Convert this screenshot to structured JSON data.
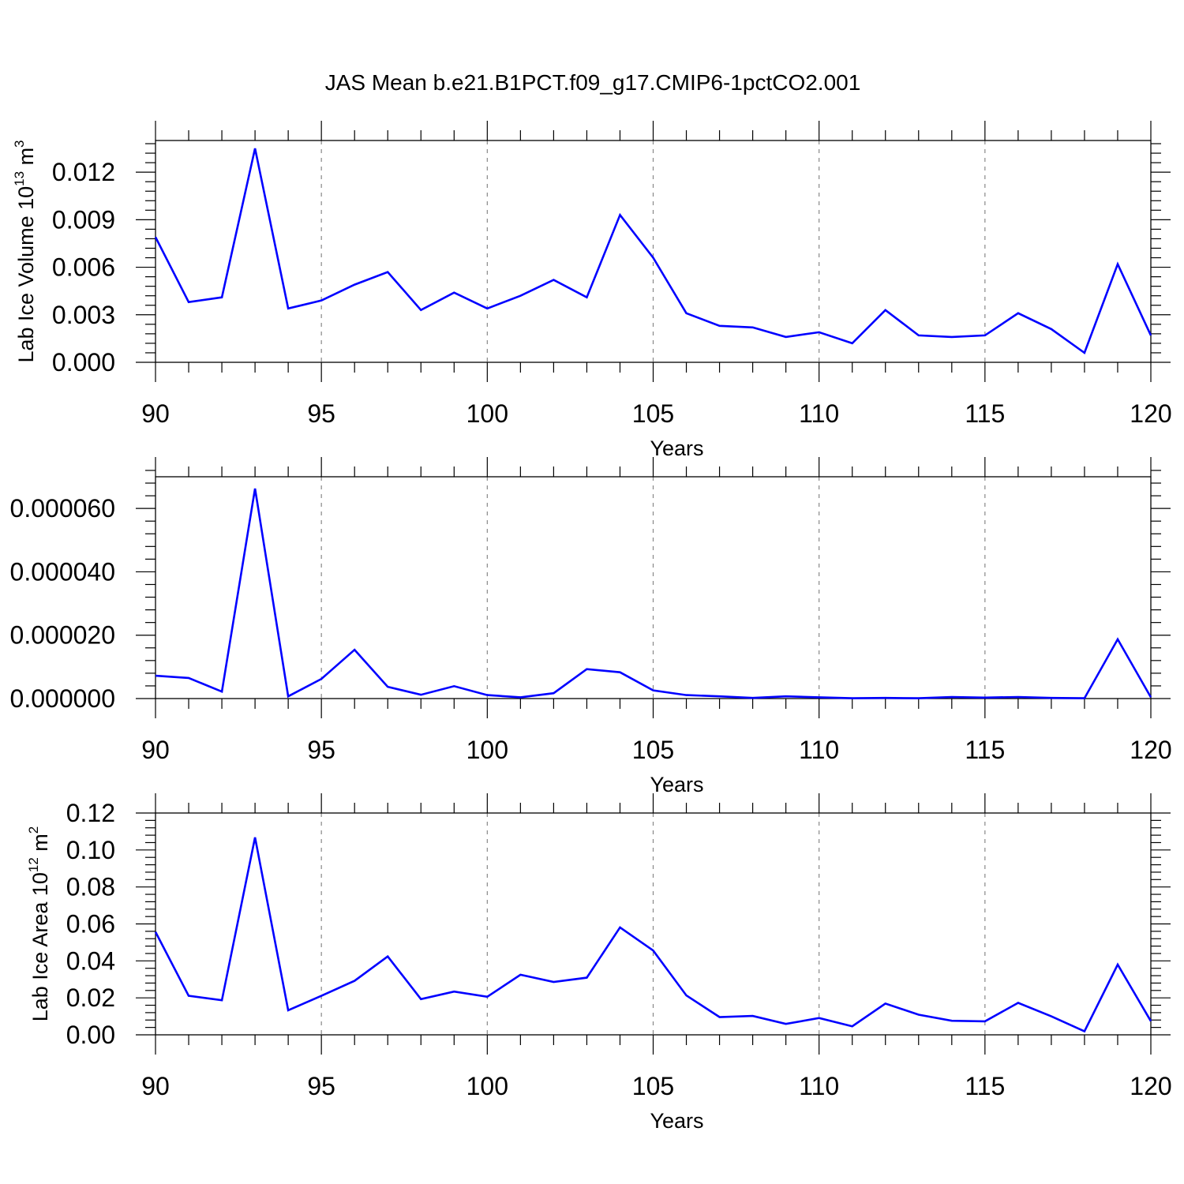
{
  "figure_title": "JAS Mean b.e21.B1PCT.f09_g17.CMIP6-1pctCO2.001",
  "colors": {
    "series": "#0000ff",
    "axis": "#000000",
    "grid": "#888888"
  },
  "chart_data": [
    {
      "type": "line",
      "ylabel": {
        "main": "Lab Ice Volume 10",
        "sup": "13",
        "unit": " m",
        "unit_sup": "3"
      },
      "xlabel": "Years",
      "xlim": [
        90,
        120
      ],
      "ylim": [
        0,
        0.014
      ],
      "x_major_ticks": [
        90,
        95,
        100,
        105,
        110,
        115,
        120
      ],
      "x_tick_labels": [
        "90",
        "95",
        "100",
        "105",
        "110",
        "115",
        "120"
      ],
      "y_major_ticks": [
        0,
        0.003,
        0.006,
        0.009,
        0.012
      ],
      "y_tick_labels": [
        "0.000",
        "0.003",
        "0.006",
        "0.009",
        "0.012"
      ],
      "y_minor_step": 0.0006,
      "x_minor_step": 1,
      "grid": "vertical-dashed",
      "x": [
        90,
        91,
        92,
        93,
        94,
        95,
        96,
        97,
        98,
        99,
        100,
        101,
        102,
        103,
        104,
        105,
        106,
        107,
        108,
        109,
        110,
        111,
        112,
        113,
        114,
        115,
        116,
        117,
        118,
        119,
        120
      ],
      "values": [
        0.0079,
        0.0038,
        0.0041,
        0.0135,
        0.0034,
        0.0039,
        0.0049,
        0.0057,
        0.0033,
        0.0044,
        0.0034,
        0.0042,
        0.0052,
        0.0041,
        0.0093,
        0.0066,
        0.0031,
        0.0023,
        0.0022,
        0.0016,
        0.0019,
        0.0012,
        0.0033,
        0.0017,
        0.0016,
        0.0017,
        0.0031,
        0.0021,
        0.0006,
        0.0062,
        0.0017
      ]
    },
    {
      "type": "line",
      "ylabel": {
        "main": "",
        "sup": "",
        "unit": "",
        "unit_sup": ""
      },
      "xlabel": "Years",
      "xlim": [
        90,
        120
      ],
      "ylim": [
        0,
        7e-05
      ],
      "x_major_ticks": [
        90,
        95,
        100,
        105,
        110,
        115,
        120
      ],
      "x_tick_labels": [
        "90",
        "95",
        "100",
        "105",
        "110",
        "115",
        "120"
      ],
      "y_major_ticks": [
        0,
        2e-05,
        4e-05,
        6e-05
      ],
      "y_tick_labels": [
        "0.000000",
        "0.000020",
        "0.000040",
        "0.000060"
      ],
      "y_minor_step": 4e-06,
      "x_minor_step": 1,
      "grid": "vertical-dashed",
      "x": [
        90,
        91,
        92,
        93,
        94,
        95,
        96,
        97,
        98,
        99,
        100,
        101,
        102,
        103,
        104,
        105,
        106,
        107,
        108,
        109,
        110,
        111,
        112,
        113,
        114,
        115,
        116,
        117,
        118,
        119,
        120
      ],
      "values": [
        7.2e-06,
        6.5e-06,
        2.2e-06,
        6.63e-05,
        7e-07,
        6.2e-06,
        1.54e-05,
        3.7e-06,
        1.2e-06,
        3.9e-06,
        1.1e-06,
        4e-07,
        1.7e-06,
        9.3e-06,
        8.3e-06,
        2.6e-06,
        1.1e-06,
        7e-07,
        2e-07,
        7e-07,
        4e-07,
        1e-07,
        2e-07,
        1e-07,
        5e-07,
        3e-07,
        5e-07,
        2e-07,
        1e-07,
        1.87e-05,
        4e-07
      ]
    },
    {
      "type": "line",
      "ylabel": {
        "main": "Lab Ice Area 10",
        "sup": "12",
        "unit": " m",
        "unit_sup": "2"
      },
      "xlabel": "Years",
      "xlim": [
        90,
        120
      ],
      "ylim": [
        0,
        0.12
      ],
      "x_major_ticks": [
        90,
        95,
        100,
        105,
        110,
        115,
        120
      ],
      "x_tick_labels": [
        "90",
        "95",
        "100",
        "105",
        "110",
        "115",
        "120"
      ],
      "y_major_ticks": [
        0,
        0.02,
        0.04,
        0.06,
        0.08,
        0.1,
        0.12
      ],
      "y_tick_labels": [
        "0.00",
        "0.02",
        "0.04",
        "0.06",
        "0.08",
        "0.10",
        "0.12"
      ],
      "y_minor_step": 0.004,
      "x_minor_step": 1,
      "grid": "vertical-dashed",
      "x": [
        90,
        91,
        92,
        93,
        94,
        95,
        96,
        97,
        98,
        99,
        100,
        101,
        102,
        103,
        104,
        105,
        106,
        107,
        108,
        109,
        110,
        111,
        112,
        113,
        114,
        115,
        116,
        117,
        118,
        119,
        120
      ],
      "values": [
        0.0557,
        0.0211,
        0.0187,
        0.1068,
        0.0133,
        0.0211,
        0.0292,
        0.0424,
        0.0193,
        0.0234,
        0.0206,
        0.0325,
        0.0286,
        0.0309,
        0.0581,
        0.0456,
        0.0213,
        0.0096,
        0.0102,
        0.0059,
        0.0091,
        0.0046,
        0.0169,
        0.0109,
        0.0076,
        0.0073,
        0.0173,
        0.01,
        0.0019,
        0.038,
        0.0074
      ]
    }
  ]
}
